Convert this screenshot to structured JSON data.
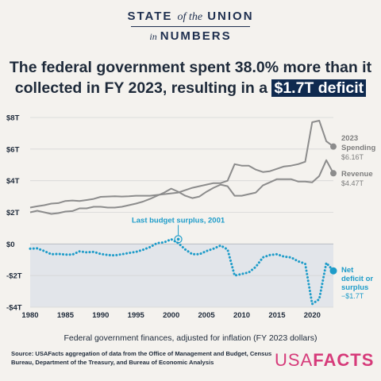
{
  "header": {
    "brand_line1_pre": "STATE ",
    "brand_line1_ital": "of the",
    "brand_line1_post": " UNION",
    "brand_line2_ital": "in",
    "brand_line2_post": "NUMBERS"
  },
  "headline": {
    "line1": "The federal government spent 38.0% more than it",
    "line2_pre": "collected in FY 2023, resulting in a ",
    "line2_highlight": "$1.7T deficit"
  },
  "caption": "Federal government finances, adjusted for inflation (FY 2023 dollars)",
  "source": "Source: USAFacts aggregation of data from the Office of Management and Budget, Census Bureau, Department of the Treasury, and Bureau of Economic Analysis",
  "logo": {
    "part1": "USA",
    "part2": "FACTS"
  },
  "colors": {
    "spending": "#8c8c8c",
    "revenue": "#8c8c8c",
    "deficit": "#1e9cc9",
    "negative_band": "#e2e5ea",
    "accent": "#d63b7a"
  },
  "chart_data": {
    "type": "line",
    "xlim": [
      1980,
      2023
    ],
    "ylim": [
      -4,
      8
    ],
    "x_ticks": [
      1980,
      1985,
      1990,
      1995,
      2000,
      2005,
      2010,
      2015,
      2020
    ],
    "y_ticks": [
      {
        "value": 8,
        "label": "$8T"
      },
      {
        "value": 6,
        "label": "$6T"
      },
      {
        "value": 4,
        "label": "$4T"
      },
      {
        "value": 2,
        "label": "$2T"
      },
      {
        "value": 0,
        "label": "$0"
      },
      {
        "value": -2,
        "label": "-$2T"
      },
      {
        "value": -4,
        "label": "-$4T"
      }
    ],
    "years": [
      1980,
      1981,
      1982,
      1983,
      1984,
      1985,
      1986,
      1987,
      1988,
      1989,
      1990,
      1991,
      1992,
      1993,
      1994,
      1995,
      1996,
      1997,
      1998,
      1999,
      2000,
      2001,
      2002,
      2003,
      2004,
      2005,
      2006,
      2007,
      2008,
      2009,
      2010,
      2011,
      2012,
      2013,
      2014,
      2015,
      2016,
      2017,
      2018,
      2019,
      2020,
      2021,
      2022,
      2023
    ],
    "series": [
      {
        "name": "Spending",
        "label_lines": [
          "2023",
          "Spending"
        ],
        "value_label": "$6.16T",
        "values": [
          2.3,
          2.38,
          2.45,
          2.55,
          2.58,
          2.72,
          2.75,
          2.72,
          2.78,
          2.85,
          2.98,
          3.0,
          3.02,
          3.0,
          3.02,
          3.05,
          3.05,
          3.05,
          3.1,
          3.15,
          3.2,
          3.25,
          3.4,
          3.55,
          3.65,
          3.75,
          3.85,
          3.85,
          4.0,
          5.05,
          4.95,
          4.95,
          4.7,
          4.55,
          4.6,
          4.75,
          4.9,
          4.95,
          5.05,
          5.2,
          7.7,
          7.8,
          6.5,
          6.16
        ]
      },
      {
        "name": "Revenue",
        "label_lines": [
          "Revenue"
        ],
        "value_label": "$4.47T",
        "values": [
          2.0,
          2.1,
          2.0,
          1.9,
          1.95,
          2.05,
          2.08,
          2.25,
          2.25,
          2.35,
          2.35,
          2.3,
          2.3,
          2.35,
          2.45,
          2.55,
          2.68,
          2.85,
          3.05,
          3.25,
          3.5,
          3.3,
          3.05,
          2.9,
          3.0,
          3.3,
          3.55,
          3.75,
          3.65,
          3.05,
          3.05,
          3.15,
          3.25,
          3.7,
          3.9,
          4.1,
          4.1,
          4.1,
          3.95,
          3.95,
          3.9,
          4.3,
          5.3,
          4.47
        ]
      },
      {
        "name": "Net deficit or surplus",
        "label_lines": [
          "Net",
          "deficit or",
          "surplus"
        ],
        "value_label": "−$1.7T",
        "values": [
          -0.3,
          -0.28,
          -0.45,
          -0.65,
          -0.63,
          -0.67,
          -0.67,
          -0.47,
          -0.53,
          -0.5,
          -0.63,
          -0.7,
          -0.72,
          -0.65,
          -0.57,
          -0.5,
          -0.37,
          -0.2,
          0.05,
          0.1,
          0.3,
          0.05,
          -0.35,
          -0.65,
          -0.65,
          -0.45,
          -0.3,
          -0.1,
          -0.35,
          -2.0,
          -1.9,
          -1.8,
          -1.45,
          -0.85,
          -0.7,
          -0.65,
          -0.8,
          -0.85,
          -1.1,
          -1.25,
          -3.8,
          -3.5,
          -1.2,
          -1.7
        ]
      }
    ],
    "annotation": {
      "text": "Last budget surplus, 2001",
      "x": 2001,
      "y": 0.3
    }
  }
}
